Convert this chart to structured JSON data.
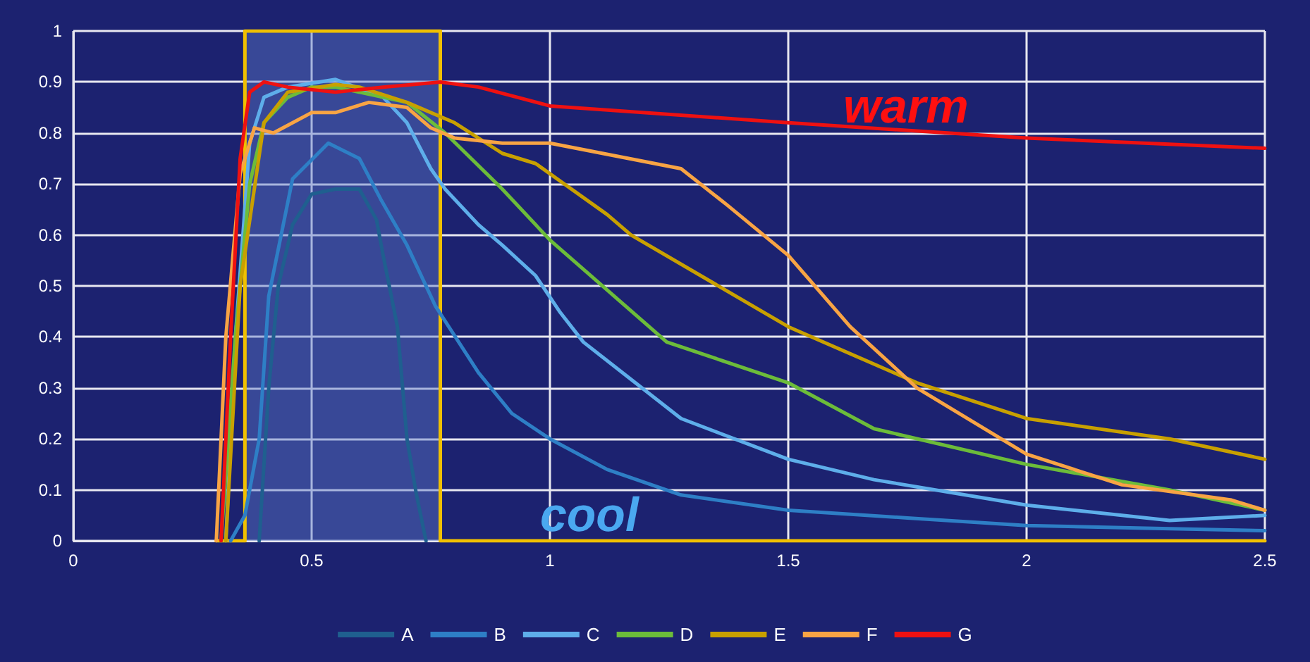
{
  "chart_data": {
    "type": "line",
    "xlim": [
      0,
      2.5
    ],
    "xticks": [
      0,
      0.5,
      1,
      1.5,
      2,
      2.5
    ],
    "ylim": [
      0,
      1
    ],
    "yticks": [
      0,
      0.1,
      0.2,
      0.3,
      0.4,
      0.5,
      0.6,
      0.7,
      0.8,
      0.9,
      1
    ],
    "grid": true,
    "legend": "bottom",
    "marker": "none",
    "line_style": "solid",
    "annotations": [
      "warm",
      "cool"
    ],
    "bands": [
      {
        "axis": "x",
        "from": 0.36,
        "to": 0.77,
        "color": "#5a78c8"
      }
    ],
    "series": [
      {
        "color": "#f0c000",
        "x": [
          0.3,
          0.36,
          0.36,
          0.77,
          0.77,
          2.5
        ],
        "values": [
          0,
          0,
          1,
          1,
          0,
          0
        ]
      },
      {
        "name": "A",
        "color": "#1f5f8f",
        "x": [
          0.39,
          0.41,
          0.43,
          0.46,
          0.5,
          0.55,
          0.6,
          0.636,
          0.65,
          0.68,
          0.7,
          0.72,
          0.74
        ],
        "values": [
          0,
          0.3,
          0.5,
          0.62,
          0.68,
          0.69,
          0.69,
          0.63,
          0.56,
          0.42,
          0.2,
          0.09,
          0
        ]
      },
      {
        "name": "B",
        "color": "#2e7fc6",
        "x": [
          0.33,
          0.36,
          0.39,
          0.41,
          0.46,
          0.535,
          0.6,
          0.645,
          0.7,
          0.76,
          0.85,
          0.92,
          1.0,
          1.12,
          1.275,
          1.5,
          1.75,
          2.0,
          2.25,
          2.5
        ],
        "values": [
          0,
          0.05,
          0.2,
          0.48,
          0.71,
          0.78,
          0.75,
          0.67,
          0.58,
          0.46,
          0.33,
          0.25,
          0.2,
          0.14,
          0.09,
          0.06,
          0.045,
          0.03,
          0.025,
          0.02
        ]
      },
      {
        "name": "C",
        "color": "#5eaeea",
        "x": [
          0.32,
          0.34,
          0.37,
          0.4,
          0.45,
          0.55,
          0.65,
          0.7,
          0.75,
          0.78,
          0.85,
          0.9,
          0.97,
          1.02,
          1.07,
          1.275,
          1.5,
          1.68,
          2.0,
          2.3,
          2.5
        ],
        "values": [
          0,
          0.4,
          0.78,
          0.87,
          0.89,
          0.905,
          0.87,
          0.82,
          0.73,
          0.69,
          0.62,
          0.58,
          0.52,
          0.45,
          0.39,
          0.24,
          0.16,
          0.12,
          0.07,
          0.04,
          0.05
        ]
      },
      {
        "name": "D",
        "color": "#6cbc3a",
        "x": [
          0.31,
          0.34,
          0.37,
          0.4,
          0.45,
          0.5,
          0.55,
          0.65,
          0.7,
          0.78,
          0.9,
          1.0,
          1.245,
          1.5,
          1.68,
          2.0,
          2.3,
          2.5
        ],
        "values": [
          0,
          0.4,
          0.7,
          0.82,
          0.87,
          0.89,
          0.89,
          0.87,
          0.86,
          0.8,
          0.69,
          0.59,
          0.39,
          0.31,
          0.22,
          0.15,
          0.1,
          0.06
        ]
      },
      {
        "name": "E",
        "color": "#c8a000",
        "x": [
          0.32,
          0.35,
          0.4,
          0.45,
          0.55,
          0.6,
          0.7,
          0.8,
          0.9,
          0.97,
          1.12,
          1.17,
          1.5,
          1.77,
          2.0,
          2.3,
          2.5
        ],
        "values": [
          0,
          0.5,
          0.82,
          0.88,
          0.895,
          0.89,
          0.86,
          0.82,
          0.76,
          0.74,
          0.64,
          0.6,
          0.42,
          0.31,
          0.24,
          0.2,
          0.16
        ]
      },
      {
        "name": "F",
        "color": "#f8a444",
        "x": [
          0.3,
          0.32,
          0.35,
          0.38,
          0.42,
          0.5,
          0.55,
          0.62,
          0.7,
          0.75,
          0.8,
          0.9,
          1.0,
          1.275,
          1.37,
          1.5,
          1.63,
          1.77,
          2.0,
          2.2,
          2.43,
          2.5
        ],
        "values": [
          0,
          0.4,
          0.72,
          0.81,
          0.8,
          0.84,
          0.84,
          0.86,
          0.85,
          0.81,
          0.79,
          0.78,
          0.78,
          0.73,
          0.66,
          0.56,
          0.42,
          0.3,
          0.17,
          0.11,
          0.08,
          0.06
        ]
      },
      {
        "name": "G",
        "color": "#ee1111",
        "x": [
          0.31,
          0.33,
          0.35,
          0.37,
          0.4,
          0.45,
          0.55,
          0.65,
          0.77,
          0.85,
          1.0,
          1.5,
          2.0,
          2.5
        ],
        "values": [
          0,
          0.4,
          0.75,
          0.88,
          0.9,
          0.89,
          0.88,
          0.89,
          0.9,
          0.89,
          0.853,
          0.82,
          0.79,
          0.77
        ]
      }
    ]
  }
}
